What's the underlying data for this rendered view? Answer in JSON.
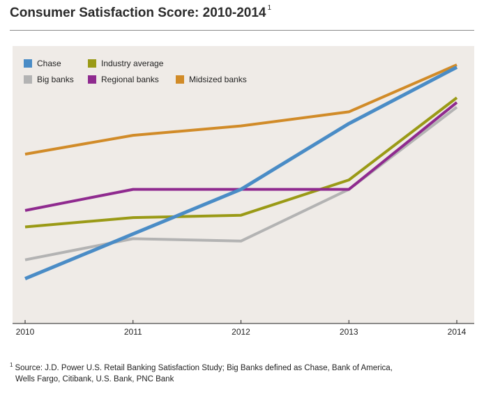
{
  "title": "Consumer Satisfaction Score: 2010-2014",
  "title_footnote_marker": "1",
  "footnote": {
    "marker": "1",
    "line1": "Source: J.D. Power U.S. Retail Banking Satisfaction Study; Big Banks defined as Chase, Bank of America,",
    "line2": "Wells Fargo, Citibank, U.S. Bank, PNC Bank"
  },
  "chart_data": {
    "type": "line",
    "title": "Consumer Satisfaction Score: 2010-2014",
    "x": [
      "2010",
      "2011",
      "2012",
      "2013",
      "2014"
    ],
    "ylim": [
      0,
      100
    ],
    "y_axis_labels_shown": false,
    "grid": false,
    "legend_position": "top-left",
    "series": [
      {
        "name": "Chase",
        "color": "#4a8cc6",
        "values": [
          9,
          28,
          47,
          75,
          99
        ]
      },
      {
        "name": "Big banks",
        "color": "#b3b3b3",
        "values": [
          17,
          26,
          25,
          47,
          82
        ]
      },
      {
        "name": "Industry average",
        "color": "#9a9a16",
        "values": [
          31,
          35,
          36,
          51,
          86
        ]
      },
      {
        "name": "Regional banks",
        "color": "#8f2a8f",
        "values": [
          38,
          47,
          47,
          47,
          84
        ]
      },
      {
        "name": "Midsized banks",
        "color": "#d18b28",
        "values": [
          62,
          70,
          74,
          80,
          100
        ]
      }
    ]
  }
}
